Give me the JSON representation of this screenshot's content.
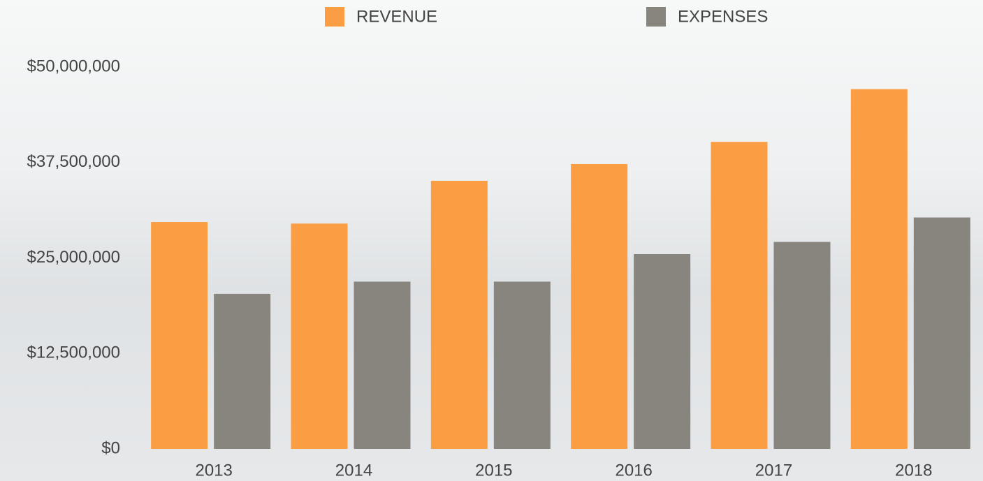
{
  "chart_data": {
    "type": "bar",
    "categories": [
      "2013",
      "2014",
      "2015",
      "2016",
      "2017",
      "2018"
    ],
    "series": [
      {
        "name": "REVENUE",
        "color": "#fb9d42",
        "values": [
          29700000,
          29500000,
          35100000,
          37300000,
          40200000,
          47100000
        ]
      },
      {
        "name": "EXPENSES",
        "color": "#88847e",
        "values": [
          20300000,
          21900000,
          21900000,
          25500000,
          27100000,
          30300000
        ]
      }
    ],
    "ylim": [
      0,
      50000000
    ],
    "yticks": [
      {
        "value": 0,
        "label": "$0"
      },
      {
        "value": 12500000,
        "label": "$12,500,000"
      },
      {
        "value": 25000000,
        "label": "$25,000,000"
      },
      {
        "value": 37500000,
        "label": "$37,500,000"
      },
      {
        "value": 50000000,
        "label": "$50,000,000"
      }
    ],
    "grid": false,
    "legend": "top"
  }
}
